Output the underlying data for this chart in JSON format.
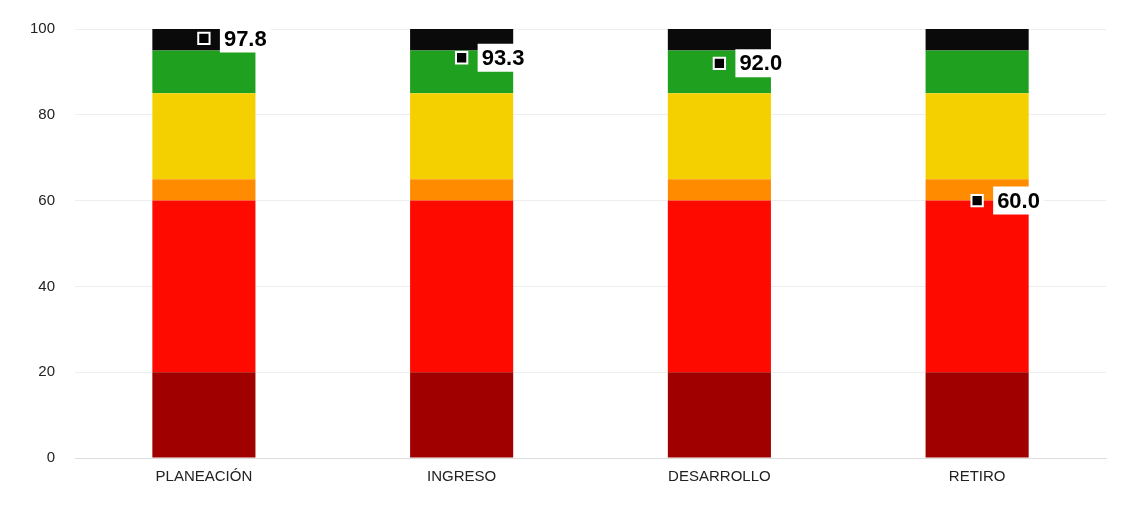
{
  "chart_data": {
    "type": "bar",
    "stacked": true,
    "categories": [
      "PLANEACIÓN",
      "INGRESO",
      "DESARROLLO",
      "RETIRO"
    ],
    "series": [
      {
        "color": "#a00000",
        "values": [
          20,
          20,
          20,
          20
        ]
      },
      {
        "color": "#ff0a00",
        "values": [
          40,
          40,
          40,
          40
        ]
      },
      {
        "color": "#ff8c00",
        "values": [
          5,
          5,
          5,
          5
        ]
      },
      {
        "color": "#f5d000",
        "values": [
          20,
          20,
          20,
          20
        ]
      },
      {
        "color": "#1fa01f",
        "values": [
          10,
          10,
          10,
          10
        ]
      },
      {
        "color": "#0a0a0a",
        "values": [
          5,
          5,
          5,
          5
        ]
      },
      {
        "type": "scatter",
        "color": "#000000",
        "x": [
          "PLANEACIÓN",
          "INGRESO",
          "DESARROLLO",
          "RETIRO"
        ],
        "values": [
          97.8,
          93.3,
          92.0,
          60.0
        ],
        "value_labels": [
          "97.8",
          "93.3",
          "92.0",
          "60.0"
        ]
      }
    ],
    "ylim": [
      0,
      100
    ],
    "yticks": [
      0,
      20,
      40,
      60,
      80,
      100
    ],
    "grid": "y",
    "legend": false,
    "marker": "square"
  }
}
